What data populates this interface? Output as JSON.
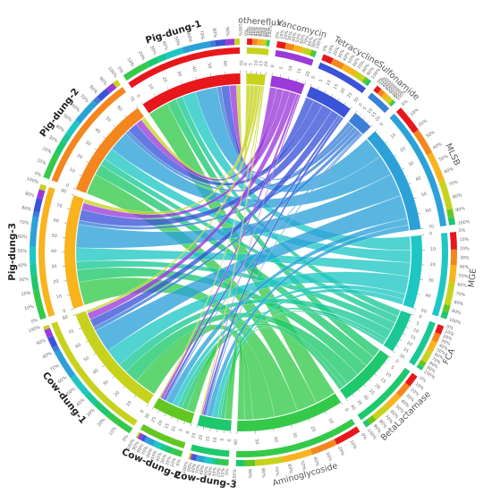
{
  "chart_data": {
    "type": "chord",
    "title": "",
    "samples": [
      {
        "name": "Pig-dung-1",
        "color": "#e8171b",
        "max_tick": 70
      },
      {
        "name": "Pig-dung-2",
        "color": "#f5861d",
        "max_tick": 70
      },
      {
        "name": "Pig-dung-3",
        "color": "#f9b31d",
        "max_tick": 80
      },
      {
        "name": "Cow-dung-1",
        "color": "#c7d21d",
        "max_tick": 80
      },
      {
        "name": "Cow-dung-2",
        "color": "#62c721",
        "max_tick": 30
      },
      {
        "name": "Cow-dung-3",
        "color": "#1ec86c",
        "max_tick": 25
      }
    ],
    "genes": [
      {
        "name": "othereflux",
        "color": "#c7d21d",
        "max_tick": 20
      },
      {
        "name": "Vancomycin",
        "color": "#9b3ad8",
        "max_tick": 20
      },
      {
        "name": "Tetracycline",
        "color": "#3a53d8",
        "max_tick": 30
      },
      {
        "name": "Sulfonamide",
        "color": "#3a7fd8",
        "max_tick": 20
      },
      {
        "name": "MLSB",
        "color": "#2ba1d8",
        "max_tick": 70
      },
      {
        "name": "MGE",
        "color": "#1fc7c4",
        "max_tick": 50
      },
      {
        "name": "FCA",
        "color": "#19c896",
        "max_tick": 30
      },
      {
        "name": "BetaLactamase",
        "color": "#1ec86c",
        "max_tick": 40
      },
      {
        "name": "Aminoglycoside",
        "color": "#35c94a",
        "max_tick": 60
      }
    ],
    "links": [
      [
        "Pig-dung-1",
        "othereflux",
        3
      ],
      [
        "Pig-dung-1",
        "Vancomycin",
        5
      ],
      [
        "Pig-dung-1",
        "Tetracycline",
        6
      ],
      [
        "Pig-dung-1",
        "Sulfonamide",
        3
      ],
      [
        "Pig-dung-1",
        "MLSB",
        16
      ],
      [
        "Pig-dung-1",
        "MGE",
        10
      ],
      [
        "Pig-dung-1",
        "FCA",
        5
      ],
      [
        "Pig-dung-1",
        "BetaLactamase",
        7
      ],
      [
        "Pig-dung-1",
        "Aminoglycoside",
        15
      ],
      [
        "Pig-dung-2",
        "othereflux",
        3
      ],
      [
        "Pig-dung-2",
        "Vancomycin",
        5
      ],
      [
        "Pig-dung-2",
        "Tetracycline",
        7
      ],
      [
        "Pig-dung-2",
        "Sulfonamide",
        3
      ],
      [
        "Pig-dung-2",
        "MLSB",
        15
      ],
      [
        "Pig-dung-2",
        "MGE",
        9
      ],
      [
        "Pig-dung-2",
        "FCA",
        5
      ],
      [
        "Pig-dung-2",
        "BetaLactamase",
        8
      ],
      [
        "Pig-dung-2",
        "Aminoglycoside",
        15
      ],
      [
        "Pig-dung-3",
        "othereflux",
        3
      ],
      [
        "Pig-dung-3",
        "Vancomycin",
        5
      ],
      [
        "Pig-dung-3",
        "Tetracycline",
        8
      ],
      [
        "Pig-dung-3",
        "Sulfonamide",
        3
      ],
      [
        "Pig-dung-3",
        "MLSB",
        17
      ],
      [
        "Pig-dung-3",
        "MGE",
        10
      ],
      [
        "Pig-dung-3",
        "FCA",
        6
      ],
      [
        "Pig-dung-3",
        "BetaLactamase",
        9
      ],
      [
        "Pig-dung-3",
        "Aminoglycoside",
        17
      ],
      [
        "Cow-dung-1",
        "othereflux",
        2
      ],
      [
        "Cow-dung-1",
        "Vancomycin",
        5
      ],
      [
        "Cow-dung-1",
        "Tetracycline",
        6
      ],
      [
        "Cow-dung-1",
        "Sulfonamide",
        3
      ],
      [
        "Cow-dung-1",
        "MLSB",
        17
      ],
      [
        "Cow-dung-1",
        "MGE",
        13
      ],
      [
        "Cow-dung-1",
        "FCA",
        7
      ],
      [
        "Cow-dung-1",
        "BetaLactamase",
        10
      ],
      [
        "Cow-dung-1",
        "Aminoglycoside",
        16
      ],
      [
        "Cow-dung-2",
        "othereflux",
        1
      ],
      [
        "Cow-dung-2",
        "Vancomycin",
        2
      ],
      [
        "Cow-dung-2",
        "Tetracycline",
        2
      ],
      [
        "Cow-dung-2",
        "Sulfonamide",
        1
      ],
      [
        "Cow-dung-2",
        "MLSB",
        5
      ],
      [
        "Cow-dung-2",
        "MGE",
        4
      ],
      [
        "Cow-dung-2",
        "FCA",
        3
      ],
      [
        "Cow-dung-2",
        "BetaLactamase",
        4
      ],
      [
        "Cow-dung-2",
        "Aminoglycoside",
        6
      ],
      [
        "Cow-dung-3",
        "othereflux",
        1
      ],
      [
        "Cow-dung-3",
        "Vancomycin",
        1
      ],
      [
        "Cow-dung-3",
        "Tetracycline",
        2
      ],
      [
        "Cow-dung-3",
        "Sulfonamide",
        1
      ],
      [
        "Cow-dung-3",
        "MLSB",
        4
      ],
      [
        "Cow-dung-3",
        "MGE",
        4
      ],
      [
        "Cow-dung-3",
        "FCA",
        2
      ],
      [
        "Cow-dung-3",
        "BetaLactamase",
        3
      ],
      [
        "Cow-dung-3",
        "Aminoglycoside",
        5
      ]
    ],
    "percent_ticks": [
      "0%",
      "10%",
      "20%",
      "30%",
      "40%",
      "50%",
      "60%",
      "70%",
      "80%",
      "90%",
      "100%"
    ]
  }
}
